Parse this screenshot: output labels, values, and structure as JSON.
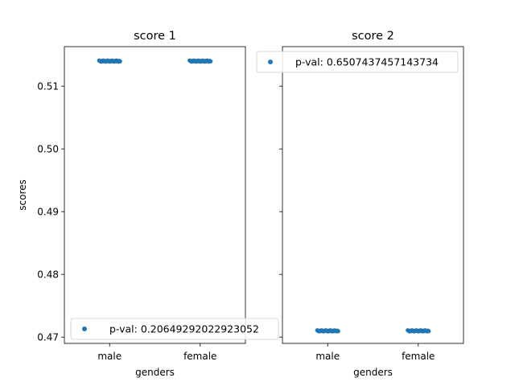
{
  "chart_data": [
    {
      "type": "scatter",
      "title": "score 1",
      "xlabel": "genders",
      "ylabel": "scores",
      "categories": [
        "male",
        "female"
      ],
      "ylim": [
        0.469,
        0.5163
      ],
      "yticks": [
        0.47,
        0.48,
        0.49,
        0.5,
        0.51
      ],
      "ytick_labels": [
        "0.47",
        "0.48",
        "0.49",
        "0.50",
        "0.51"
      ],
      "series": [
        {
          "name": "p-val: 0.20649292022923052",
          "color": "#1f77b4",
          "points": [
            {
              "category": "male",
              "y": 0.514
            },
            {
              "category": "female",
              "y": 0.514
            }
          ]
        }
      ],
      "legend": {
        "position": "lower-left",
        "entries": [
          "p-val: 0.20649292022923052"
        ]
      },
      "grid": false
    },
    {
      "type": "scatter",
      "title": "score 2",
      "xlabel": "genders",
      "ylabel": "",
      "categories": [
        "male",
        "female"
      ],
      "ylim": [
        0.469,
        0.5163
      ],
      "yticks": [
        0.47,
        0.48,
        0.49,
        0.5,
        0.51
      ],
      "ytick_labels": [
        "",
        "",
        "",
        "",
        ""
      ],
      "sharey": true,
      "series": [
        {
          "name": "p-val: 0.6507437457143734",
          "color": "#1f77b4",
          "points": [
            {
              "category": "male",
              "y": 0.471
            },
            {
              "category": "female",
              "y": 0.471
            }
          ]
        }
      ],
      "legend": {
        "position": "upper-right",
        "entries": [
          "p-val: 0.6507437457143734"
        ]
      },
      "grid": false
    }
  ]
}
